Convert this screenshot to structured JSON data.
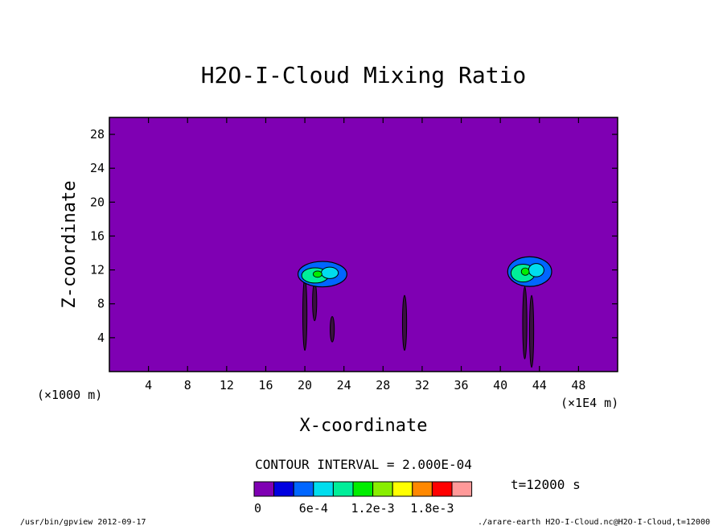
{
  "chart_data": {
    "type": "heatmap",
    "title": "H2O-I-Cloud Mixing Ratio",
    "xlabel": "X-coordinate",
    "ylabel": "Z-coordinate",
    "x_units_left": "(×1000 m)",
    "x_units_right": "(×1E4 m)",
    "xlim": [
      0,
      52
    ],
    "ylim": [
      0,
      30
    ],
    "x_ticks": [
      4,
      8,
      12,
      16,
      20,
      24,
      28,
      32,
      36,
      40,
      44,
      48
    ],
    "y_ticks": [
      4,
      8,
      12,
      16,
      20,
      24,
      28
    ],
    "background_color": "#7f00b3",
    "contour_interval_text": "CONTOUR INTERVAL = 2.000E-04",
    "time_text": "t=12000 s",
    "colorbar": {
      "colors": [
        "#7f00b3",
        "#0000e0",
        "#0066ff",
        "#00ddee",
        "#00ee99",
        "#00ee00",
        "#88ee00",
        "#ffff00",
        "#ff8800",
        "#ff0000",
        "#ff9999"
      ],
      "labels": [
        "0",
        "6e-4",
        "1.2e-3",
        "1.8e-3"
      ]
    },
    "cloud_regions": [
      {
        "x_center": 21.8,
        "z_center": 11.5,
        "width": 5.0,
        "height": 3.0
      },
      {
        "x_center": 43.0,
        "z_center": 11.8,
        "width": 4.5,
        "height": 3.5
      }
    ],
    "streaks": [
      {
        "x": 20.0,
        "z_top": 11.0,
        "z_bottom": 2.5
      },
      {
        "x": 21.0,
        "z_top": 10.5,
        "z_bottom": 6.0
      },
      {
        "x": 22.8,
        "z_top": 6.5,
        "z_bottom": 3.5
      },
      {
        "x": 30.2,
        "z_top": 9.0,
        "z_bottom": 2.5
      },
      {
        "x": 42.5,
        "z_top": 10.0,
        "z_bottom": 1.5
      },
      {
        "x": 43.2,
        "z_top": 9.0,
        "z_bottom": 0.5
      }
    ]
  },
  "footer": {
    "left": "/usr/bin/gpview  2012-09-17",
    "right": "./arare-earth_H2O-I-Cloud.nc@H2O-I-Cloud,t=12000"
  }
}
